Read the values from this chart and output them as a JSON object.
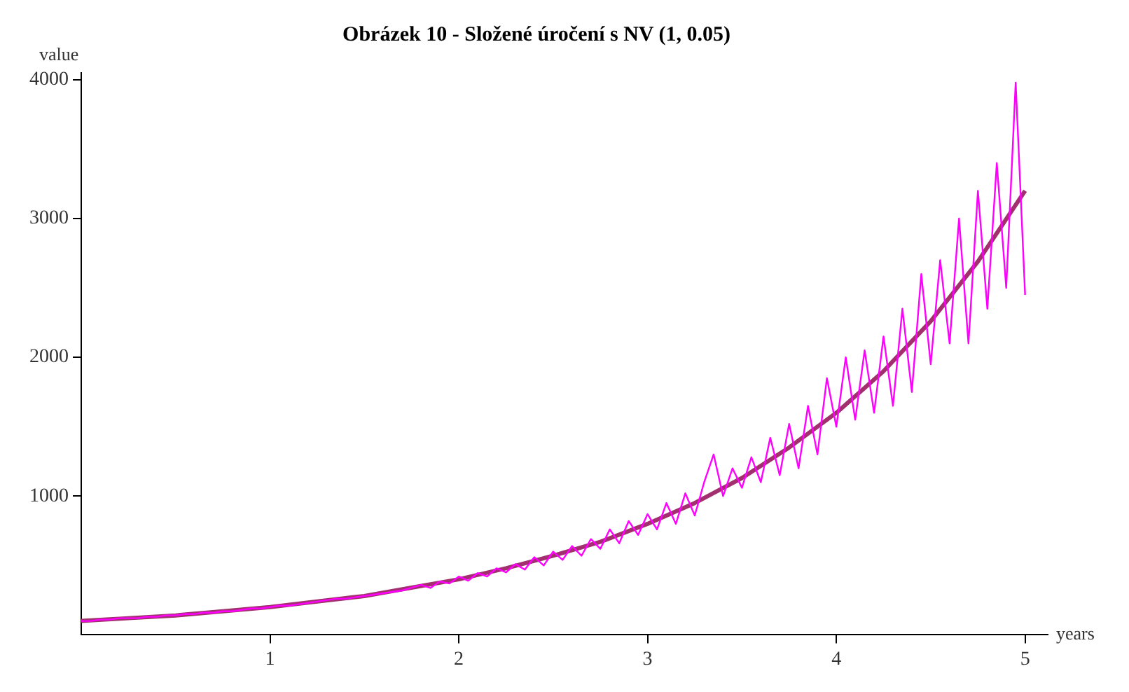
{
  "chart_data": {
    "type": "line",
    "title": "Obrázek 10 - Složené úročení s NV (1, 0.05)",
    "xlabel": "years",
    "ylabel": "value",
    "xlim": [
      0,
      5.12
    ],
    "ylim": [
      0,
      4050
    ],
    "xticks": [
      1,
      2,
      3,
      4,
      5
    ],
    "yticks": [
      1000,
      2000,
      3000,
      4000
    ],
    "grid": false,
    "legend": false,
    "marker": "none",
    "line_style": "solid",
    "series": [
      {
        "color": "#ff00ff",
        "x": [
          0,
          0.05,
          0.1,
          0.15,
          0.2,
          0.25,
          0.3,
          0.35,
          0.4,
          0.45,
          0.5,
          0.55,
          0.6,
          0.65,
          0.7,
          0.75,
          0.8,
          0.85,
          0.9,
          0.95,
          1,
          1.05,
          1.1,
          1.15,
          1.2,
          1.25,
          1.3,
          1.35,
          1.4,
          1.45,
          1.5,
          1.55,
          1.6,
          1.65,
          1.7,
          1.75,
          1.8,
          1.85,
          1.9,
          1.95,
          2,
          2.05,
          2.1,
          2.15,
          2.2,
          2.25,
          2.3,
          2.35,
          2.4,
          2.45,
          2.5,
          2.55,
          2.6,
          2.65,
          2.7,
          2.75,
          2.8,
          2.85,
          2.9,
          2.95,
          3,
          3.05,
          3.1,
          3.15,
          3.2,
          3.25,
          3.3,
          3.35,
          3.4,
          3.45,
          3.5,
          3.55,
          3.6,
          3.65,
          3.7,
          3.75,
          3.8,
          3.85,
          3.9,
          3.95,
          4,
          4.05,
          4.1,
          4.15,
          4.2,
          4.25,
          4.3,
          4.35,
          4.4,
          4.45,
          4.5,
          4.55,
          4.6,
          4.65,
          4.7,
          4.75,
          4.8,
          4.85,
          4.9,
          4.95,
          5
        ],
        "values": [
          100,
          100,
          110,
          110,
          120,
          120,
          120,
          130,
          130,
          140,
          140,
          150,
          150,
          160,
          160,
          170,
          170,
          180,
          190,
          190,
          200,
          210,
          210,
          220,
          230,
          240,
          250,
          260,
          260,
          270,
          280,
          290,
          300,
          310,
          320,
          340,
          360,
          338,
          385,
          370,
          420,
          390,
          445,
          420,
          480,
          450,
          510,
          470,
          560,
          500,
          600,
          540,
          640,
          570,
          690,
          620,
          760,
          660,
          820,
          720,
          870,
          760,
          950,
          800,
          1020,
          860,
          1100,
          1300,
          1000,
          1200,
          1060,
          1280,
          1100,
          1420,
          1150,
          1520,
          1200,
          1650,
          1300,
          1850,
          1500,
          2000,
          1550,
          2050,
          1600,
          2150,
          1650,
          2350,
          1750,
          2600,
          1950,
          2700,
          2100,
          3000,
          2100,
          3200,
          2350,
          3400,
          2500,
          3980,
          2450
        ]
      },
      {
        "color": "#a3306e",
        "x": [
          0,
          0.25,
          0.5,
          0.75,
          1,
          1.25,
          1.5,
          1.75,
          2,
          2.25,
          2.5,
          2.75,
          3,
          3.25,
          3.5,
          3.75,
          4,
          4.25,
          4.5,
          4.75,
          5
        ],
        "values": [
          100,
          120,
          140,
          170,
          200,
          240,
          280,
          340,
          400,
          480,
          570,
          670,
          800,
          950,
          1130,
          1350,
          1600,
          1900,
          2260,
          2690,
          3200
        ]
      }
    ]
  }
}
